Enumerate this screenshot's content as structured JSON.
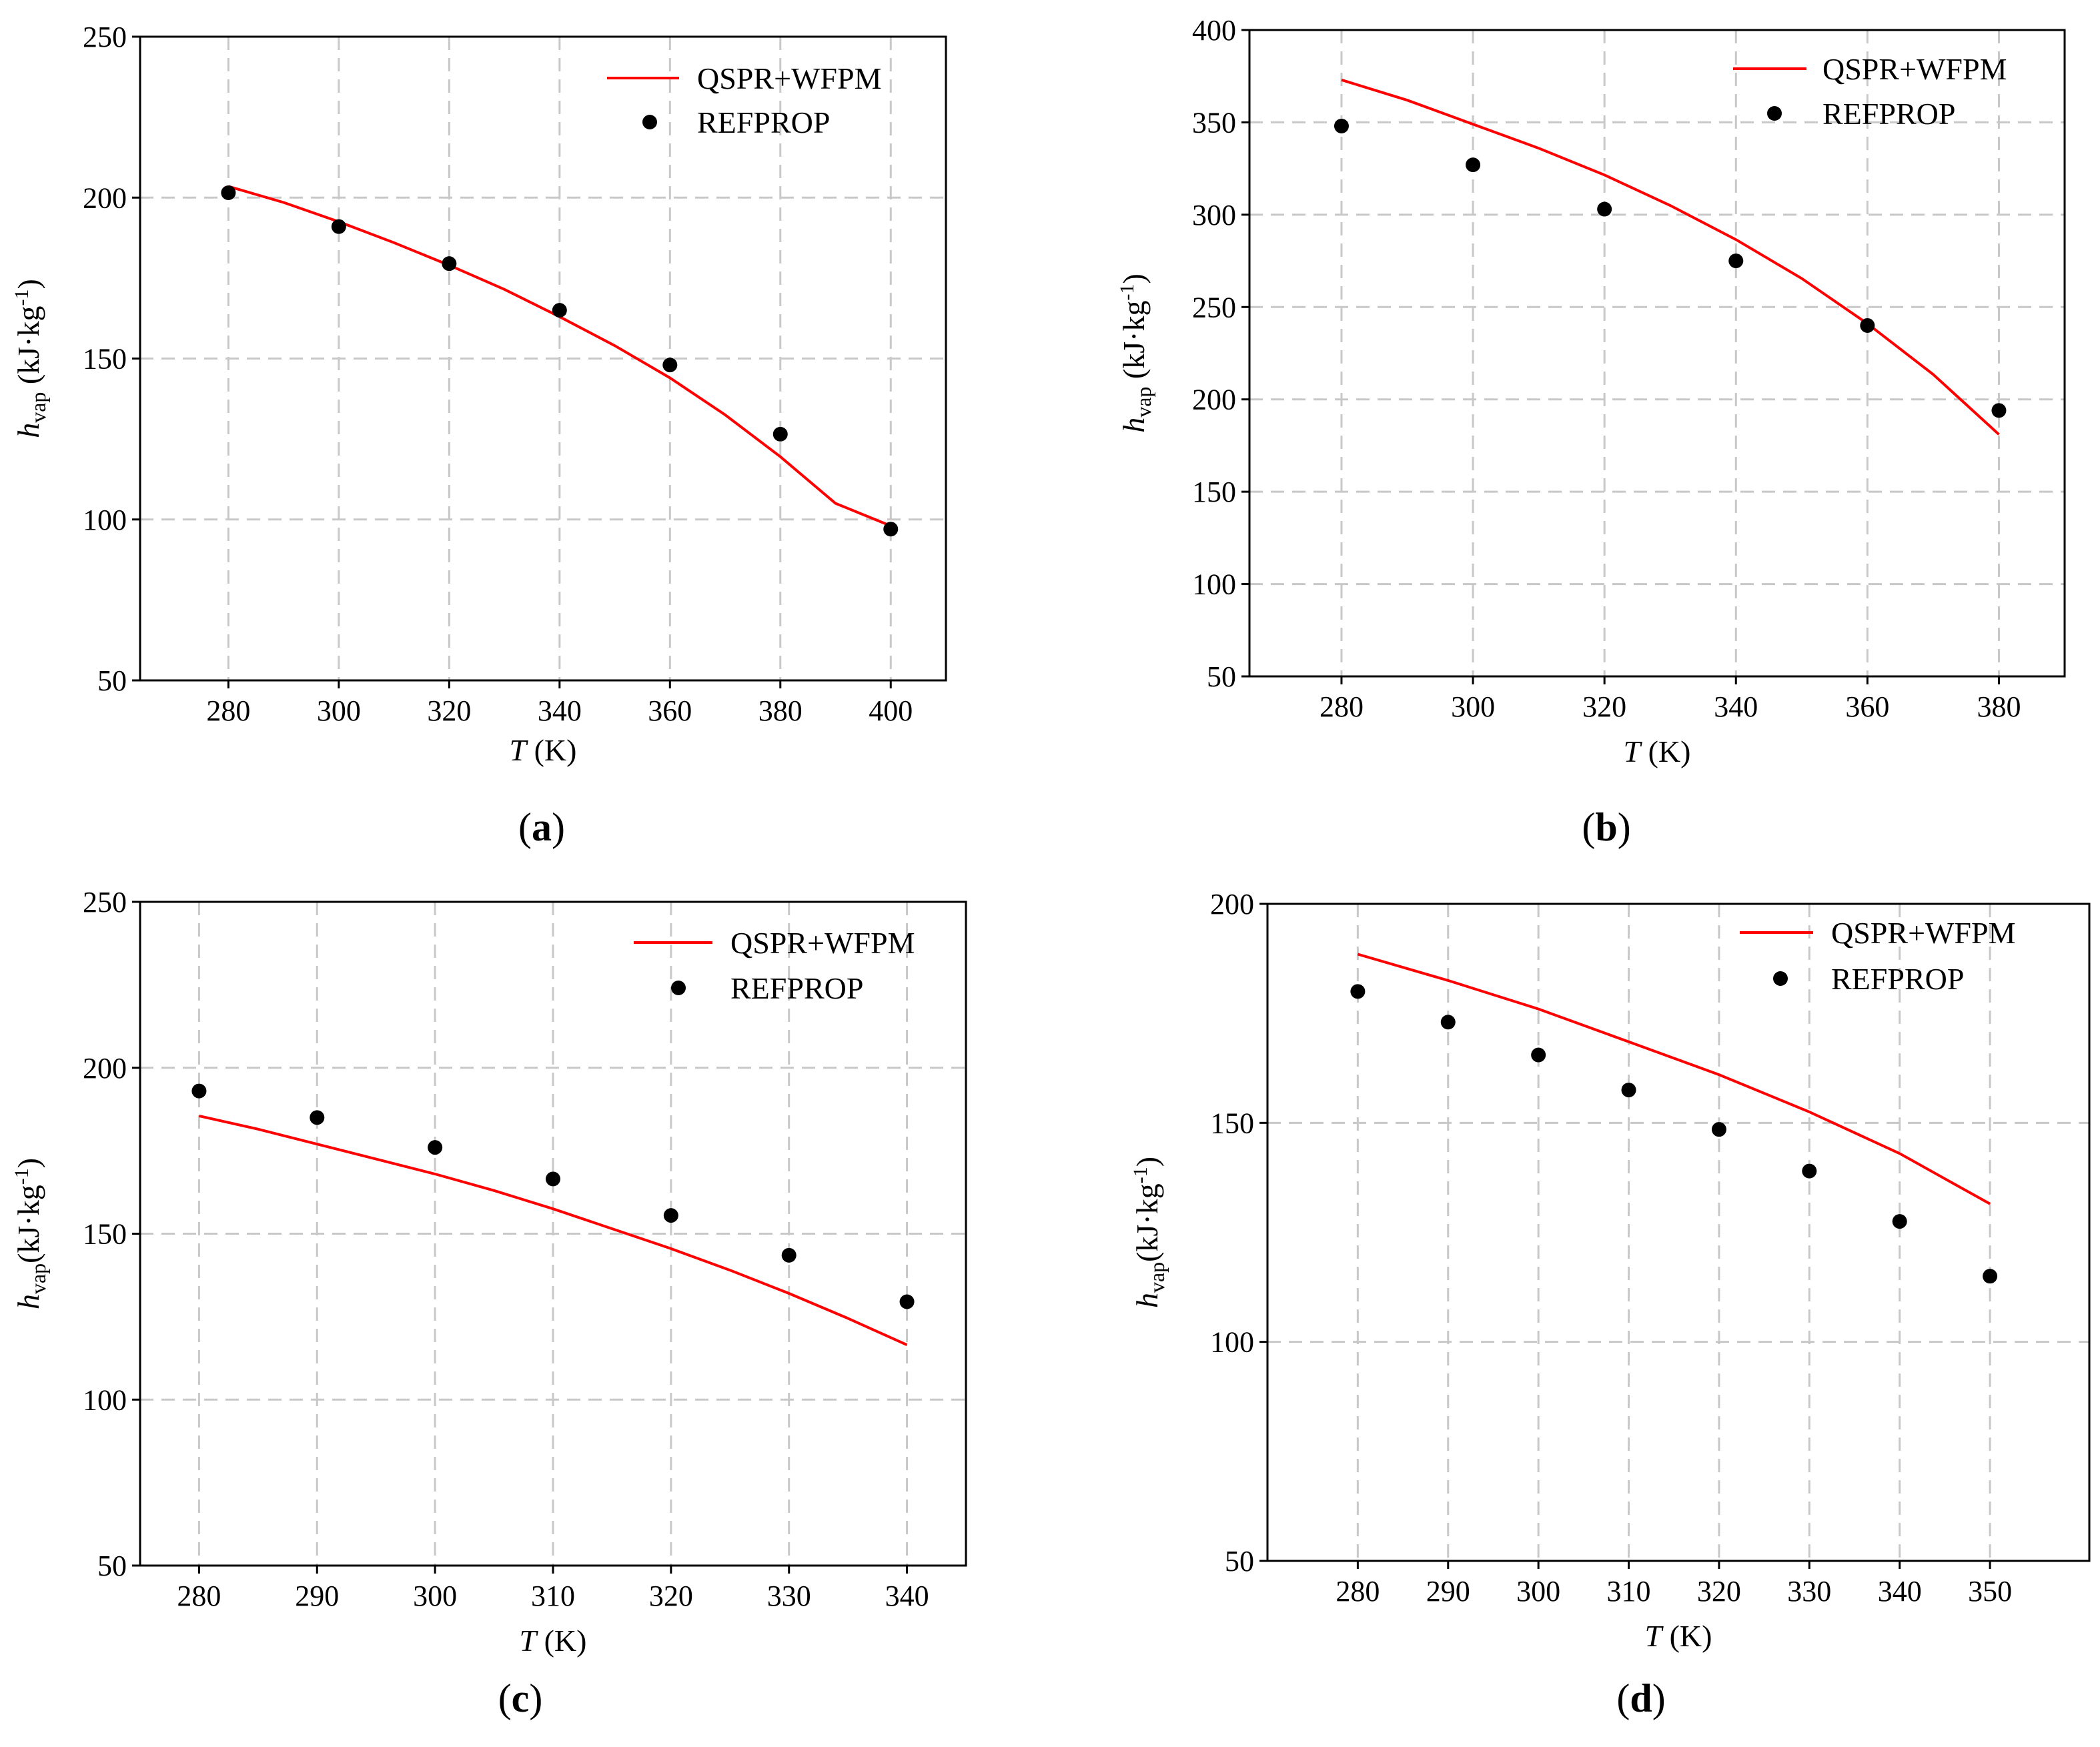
{
  "legend": {
    "model_label": "QSPR+WFPM",
    "reference_label": "REFPROP"
  },
  "colors": {
    "model": "#ff0000",
    "reference": "#000000",
    "grid": "#c8c8c8"
  },
  "chart_data": [
    {
      "id": "a",
      "panel_label": {
        "open": "(",
        "letter": "a",
        "close": ")"
      },
      "type": "line",
      "ylabel": {
        "symbol": "h",
        "subscript": "vap",
        "unit_open": " (kJ·kg",
        "unit_exp": "-1",
        "unit_close": ")"
      },
      "xlabel": {
        "symbol": "T",
        "unit": " (K)"
      },
      "xlim": [
        264,
        410
      ],
      "ylim": [
        50,
        250
      ],
      "xticks": [
        280,
        300,
        320,
        340,
        360,
        380,
        400
      ],
      "yticks": [
        50,
        100,
        150,
        200,
        250
      ],
      "grid_y": [
        100,
        150,
        200
      ],
      "series": [
        {
          "name": "QSPR+WFPM",
          "kind": "line",
          "x": [
            280,
            290,
            300,
            310,
            320,
            330,
            340,
            350,
            360,
            370,
            380,
            390,
            400
          ],
          "y": [
            203.5,
            198.5,
            192.5,
            186,
            179,
            171.5,
            163,
            154,
            144,
            132.5,
            119.5,
            105,
            98
          ]
        },
        {
          "name": "REFPROP",
          "kind": "scatter",
          "x": [
            280,
            300,
            320,
            340,
            360,
            380,
            400
          ],
          "y": [
            201.5,
            191,
            179.5,
            165,
            148,
            126.5,
            97
          ]
        }
      ]
    },
    {
      "id": "b",
      "panel_label": {
        "open": "(",
        "letter": "b",
        "close": ")"
      },
      "type": "line",
      "ylabel": {
        "symbol": "h",
        "subscript": "vap",
        "unit_open": " (kJ·kg",
        "unit_exp": "-1",
        "unit_close": ")"
      },
      "xlabel": {
        "symbol": "T",
        "unit": " (K)"
      },
      "xlim": [
        266,
        390
      ],
      "ylim": [
        50,
        400
      ],
      "xticks": [
        280,
        300,
        320,
        340,
        360,
        380
      ],
      "yticks": [
        50,
        100,
        150,
        200,
        250,
        300,
        350,
        400
      ],
      "grid_y": [
        100,
        150,
        200,
        250,
        300,
        350
      ],
      "series": [
        {
          "name": "QSPR+WFPM",
          "kind": "line",
          "x": [
            280,
            290,
            300,
            310,
            320,
            330,
            340,
            350,
            360,
            370,
            380
          ],
          "y": [
            373,
            362,
            349,
            336,
            321.5,
            305,
            286.5,
            265.5,
            241,
            213.5,
            181
          ]
        },
        {
          "name": "REFPROP",
          "kind": "scatter",
          "x": [
            280,
            300,
            320,
            340,
            360,
            380
          ],
          "y": [
            348,
            327,
            303,
            275,
            240,
            194
          ]
        }
      ]
    },
    {
      "id": "c",
      "panel_label": {
        "open": "(",
        "letter": "c",
        "close": ")"
      },
      "type": "line",
      "ylabel": {
        "symbol": "h",
        "subscript": "vap",
        "unit_open": "(kJ·kg",
        "unit_exp": "-1",
        "unit_close": ")"
      },
      "xlabel": {
        "symbol": "T",
        "unit": " (K)"
      },
      "xlim": [
        275,
        345
      ],
      "ylim": [
        50,
        250
      ],
      "xticks": [
        280,
        290,
        300,
        310,
        320,
        330,
        340
      ],
      "yticks": [
        50,
        100,
        150,
        200,
        250
      ],
      "grid_y": [
        100,
        150,
        200
      ],
      "series": [
        {
          "name": "QSPR+WFPM",
          "kind": "line",
          "x": [
            280,
            285,
            290,
            295,
            300,
            305,
            310,
            315,
            320,
            325,
            330,
            335,
            340
          ],
          "y": [
            185.5,
            181.5,
            177,
            172.5,
            168,
            163,
            157.5,
            151.5,
            145.5,
            139,
            132,
            124.5,
            116.5
          ]
        },
        {
          "name": "REFPROP",
          "kind": "scatter",
          "x": [
            280,
            290,
            300,
            310,
            320,
            330,
            340
          ],
          "y": [
            193,
            185,
            176,
            166.5,
            155.5,
            143.5,
            129.5
          ]
        }
      ]
    },
    {
      "id": "d",
      "panel_label": {
        "open": "(",
        "letter": "d",
        "close": ")"
      },
      "type": "line",
      "ylabel": {
        "symbol": "h",
        "subscript": "vap",
        "unit_open": "(kJ·kg",
        "unit_exp": "-1",
        "unit_close": ")"
      },
      "xlabel": {
        "symbol": "T",
        "unit": " (K)"
      },
      "xlim": [
        270,
        361
      ],
      "ylim": [
        50,
        200
      ],
      "xticks": [
        280,
        290,
        300,
        310,
        320,
        330,
        340,
        350
      ],
      "yticks": [
        50,
        100,
        150,
        200
      ],
      "grid_y": [
        100,
        150
      ],
      "series": [
        {
          "name": "QSPR+WFPM",
          "kind": "line",
          "x": [
            280,
            290,
            300,
            310,
            320,
            330,
            340,
            350
          ],
          "y": [
            188.5,
            182.5,
            176,
            168.5,
            161,
            152.5,
            143,
            131.5
          ]
        },
        {
          "name": "REFPROP",
          "kind": "scatter",
          "x": [
            280,
            290,
            300,
            310,
            320,
            330,
            340,
            350
          ],
          "y": [
            180,
            173,
            165.5,
            157.5,
            148.5,
            139,
            127.5,
            115
          ]
        }
      ]
    }
  ]
}
